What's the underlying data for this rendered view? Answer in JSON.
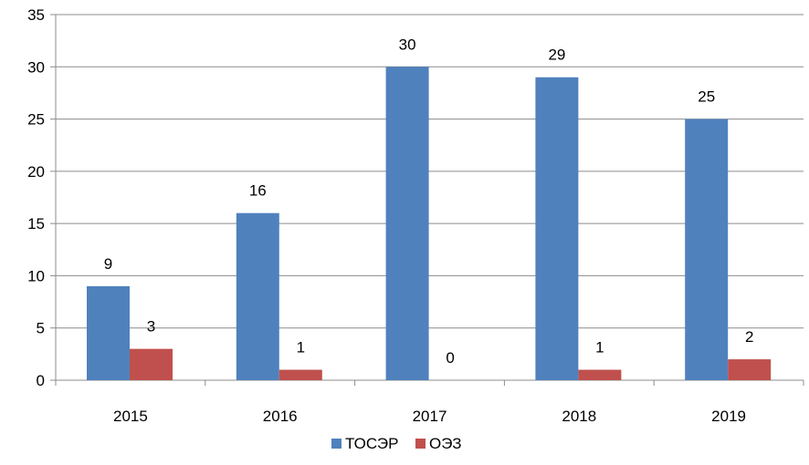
{
  "chart_data": {
    "type": "bar",
    "categories": [
      "2015",
      "2016",
      "2017",
      "2018",
      "2019"
    ],
    "series": [
      {
        "name": "ТОСЭР",
        "values": [
          9,
          16,
          30,
          29,
          25
        ],
        "color": "#4F81BD"
      },
      {
        "name": "ОЭЗ",
        "values": [
          3,
          1,
          0,
          1,
          2
        ],
        "color": "#C0504D"
      }
    ],
    "ylim": [
      0,
      35
    ],
    "yticks": [
      0,
      5,
      10,
      15,
      20,
      25,
      30,
      35
    ],
    "grid": true,
    "legend_position": "bottom",
    "data_labels": true,
    "title": "",
    "xlabel": "",
    "ylabel": ""
  }
}
